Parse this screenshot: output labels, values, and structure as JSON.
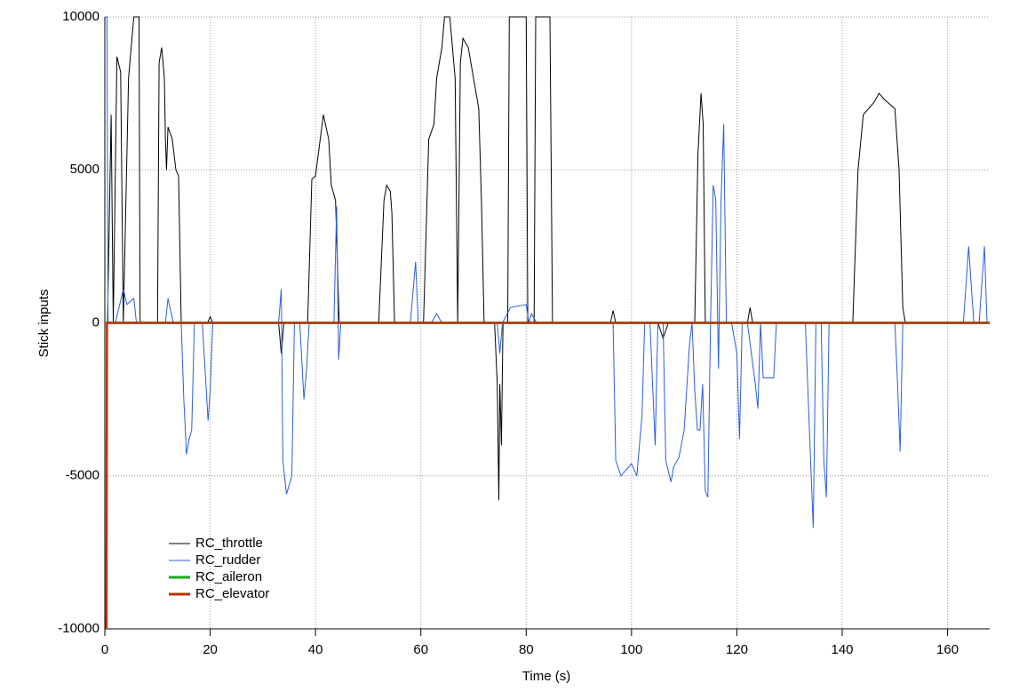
{
  "chart_data": {
    "type": "line",
    "xlabel": "Time (s)",
    "ylabel": "Stick inputs",
    "xlim": [
      0,
      168
    ],
    "ylim": [
      -10000,
      10000
    ],
    "xticks": [
      0,
      20,
      40,
      60,
      80,
      100,
      120,
      140,
      160
    ],
    "yticks": [
      -10000,
      -5000,
      0,
      5000,
      10000
    ],
    "grid": true,
    "legend": "lower left",
    "series": [
      {
        "name": "RC_throttle",
        "color": "#000000",
        "x": [
          0.5,
          1.2,
          1.6,
          2.3,
          3,
          3.5,
          4.5,
          5.5,
          6.5,
          6.7,
          10,
          10.3,
          10.8,
          11.3,
          11.5,
          11.7,
          12,
          12.8,
          13.5,
          14,
          14.5,
          19.5,
          20,
          20.5,
          33,
          33.5,
          34,
          38.5,
          39.3,
          40,
          41.5,
          42.5,
          43,
          43.8,
          44.5,
          52,
          53,
          53.5,
          54.2,
          54.5,
          55,
          60.5,
          61.5,
          62.5,
          63,
          64,
          64.5,
          65.5,
          66,
          66.5,
          67,
          67.5,
          68,
          69,
          70,
          71,
          71.5,
          72,
          74,
          74.5,
          74.8,
          75,
          75.3,
          75.6,
          76.5,
          76.8,
          80,
          80.3,
          81.5,
          81.8,
          84.5,
          85,
          96,
          96.5,
          97,
          105,
          106,
          107,
          112,
          112.6,
          113.2,
          113.6,
          114,
          122,
          122.5,
          123,
          142,
          143,
          144,
          146,
          147,
          148,
          150,
          150.8,
          151.5,
          152,
          168
        ],
        "values": [
          0,
          6800,
          0,
          8700,
          8200,
          0,
          8000,
          10000,
          10000,
          0,
          0,
          8500,
          9000,
          8000,
          6000,
          5000,
          6400,
          6000,
          5000,
          4800,
          0,
          0,
          200,
          0,
          0,
          -1000,
          0,
          0,
          4700,
          4800,
          6800,
          6000,
          4500,
          4000,
          0,
          0,
          4000,
          4500,
          4300,
          3600,
          0,
          0,
          6000,
          6500,
          8000,
          9000,
          10000,
          10000,
          9000,
          8000,
          0,
          8500,
          9300,
          9000,
          8000,
          7000,
          4000,
          0,
          0,
          -2000,
          -5800,
          -2000,
          -4000,
          0,
          0,
          10000,
          10000,
          0,
          0,
          10000,
          10000,
          0,
          0,
          400,
          0,
          0,
          -500,
          0,
          0,
          5500,
          7500,
          6500,
          0,
          0,
          500,
          0,
          0,
          5000,
          6800,
          7200,
          7500,
          7300,
          7000,
          5000,
          500,
          0,
          0
        ]
      },
      {
        "name": "RC_rudder",
        "color": "#2a5ce0",
        "x": [
          0,
          0.4,
          0.6,
          2,
          3.5,
          4.2,
          5.5,
          6,
          11.5,
          12,
          13,
          14.5,
          15,
          15.5,
          16,
          16.5,
          17,
          18.5,
          19.2,
          19.6,
          20,
          20.5,
          33,
          33.5,
          33.8,
          34.5,
          35.5,
          36,
          37,
          37.8,
          38.3,
          38.8,
          43.5,
          44,
          44.4,
          44.8,
          58,
          59,
          59.5,
          62,
          63,
          64,
          73,
          74.5,
          75,
          75.5,
          77,
          80,
          80.5,
          81,
          82,
          96.5,
          97,
          98,
          99,
          100,
          101,
          102,
          102.5,
          103.5,
          104.5,
          105,
          106,
          106.5,
          107.5,
          108,
          109,
          110,
          111,
          111.5,
          112,
          112.5,
          113,
          113.5,
          114,
          114.5,
          115,
          115.5,
          116,
          116.5,
          117,
          117.5,
          118,
          119,
          120,
          120.5,
          121,
          122,
          123.5,
          124,
          124.5,
          125,
          127,
          127.5,
          133,
          134,
          134.5,
          135,
          136,
          136.5,
          137,
          137.5,
          150,
          150.5,
          151,
          151.5,
          163,
          164,
          164.5,
          165,
          166,
          167,
          167.5
        ],
        "values": [
          10000,
          10000,
          0,
          0,
          1100,
          600,
          800,
          0,
          0,
          800,
          0,
          0,
          -2500,
          -4300,
          -3800,
          -3500,
          0,
          0,
          -2000,
          -3200,
          -2200,
          0,
          0,
          1100,
          -4500,
          -5600,
          -5000,
          0,
          0,
          -2500,
          -1500,
          0,
          0,
          3800,
          -1200,
          0,
          0,
          2000,
          0,
          0,
          300,
          0,
          0,
          0,
          -1000,
          0,
          500,
          600,
          0,
          300,
          0,
          0,
          -4500,
          -5000,
          -4800,
          -4600,
          -5000,
          -3000,
          0,
          0,
          -4000,
          0,
          0,
          -4500,
          -5200,
          -4700,
          -4400,
          -3500,
          -700,
          0,
          -2200,
          -3500,
          -3500,
          -2000,
          -5500,
          -5700,
          0,
          4500,
          4000,
          -1500,
          4000,
          6500,
          0,
          0,
          -1000,
          -3800,
          0,
          0,
          -2000,
          -2800,
          0,
          -1800,
          -1800,
          0,
          0,
          -4500,
          -6700,
          0,
          0,
          -4500,
          -5700,
          0,
          0,
          -2000,
          -4200,
          0,
          0,
          2500,
          1200,
          0,
          0,
          2500,
          0
        ]
      },
      {
        "name": "RC_aileron",
        "color": "#1aaa1a",
        "x": [
          0.4,
          168
        ],
        "values": [
          0,
          0
        ]
      },
      {
        "name": "RC_elevator",
        "color": "#b83200",
        "x": [
          0.3,
          0.4,
          168
        ],
        "values": [
          -10000,
          0,
          0
        ]
      }
    ]
  }
}
